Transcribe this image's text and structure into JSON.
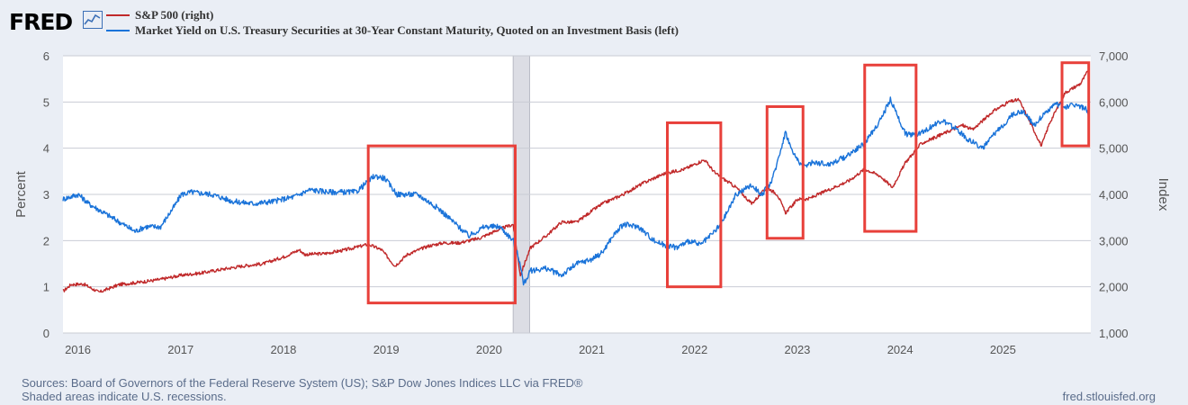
{
  "header": {
    "logo_text": "FRED",
    "logo_icon": "fred-chart-icon"
  },
  "legend": {
    "items": [
      {
        "label": "S&P 500 (right)",
        "color": "#c0292a"
      },
      {
        "label": "Market Yield on U.S. Treasury Securities at 30-Year Constant Maturity, Quoted on an Investment Basis (left)",
        "color": "#1a73d9"
      }
    ]
  },
  "footer": {
    "sources": "Sources: Board of Governors of the Federal Reserve System (US); S&P Dow Jones Indices LLC via FRED®",
    "note": "Shaded areas indicate U.S. recessions.",
    "site": "fred.stlouisfed.org"
  },
  "chart_data": {
    "type": "line",
    "title": "",
    "xlabel": "",
    "ylabel_left": "Percent",
    "ylabel_right": "Index",
    "x_range": [
      2015.75,
      2025.75
    ],
    "xticks": [
      2016,
      2017,
      2018,
      2019,
      2020,
      2021,
      2022,
      2023,
      2024,
      2025
    ],
    "xtick_labels": [
      "2016",
      "2017",
      "2018",
      "2019",
      "2020",
      "2021",
      "2022",
      "2023",
      "2024",
      "2025"
    ],
    "ylim_left": [
      0,
      6
    ],
    "yticks_left": [
      0,
      1,
      2,
      3,
      4,
      5,
      6
    ],
    "ytick_labels_left": [
      "0",
      "1",
      "2",
      "3",
      "4",
      "5",
      "6"
    ],
    "ylim_right": [
      1000,
      7000
    ],
    "yticks_right": [
      1000,
      2000,
      3000,
      4000,
      5000,
      6000,
      7000
    ],
    "ytick_labels_right": [
      "1,000",
      "2,000",
      "3,000",
      "4,000",
      "5,000",
      "6,000",
      "7,000"
    ],
    "grid": true,
    "recessions": [
      [
        2020.13,
        2020.29
      ]
    ],
    "highlight_boxes": [
      {
        "x0": 2018.72,
        "x1": 2020.15,
        "y0_left": 0.65,
        "y1_left": 4.05
      },
      {
        "x0": 2021.63,
        "x1": 2022.15,
        "y0_left": 1.0,
        "y1_left": 4.55
      },
      {
        "x0": 2022.6,
        "x1": 2022.95,
        "y0_left": 2.05,
        "y1_left": 4.9
      },
      {
        "x0": 2023.55,
        "x1": 2024.05,
        "y0_left": 2.2,
        "y1_left": 5.8
      },
      {
        "x0": 2025.47,
        "x1": 2025.73,
        "y0_left": 4.05,
        "y1_left": 5.85
      }
    ],
    "series": [
      {
        "name": "S&P 500 (right)",
        "axis": "right",
        "color": "#c0292a",
        "x": [
          2015.75,
          2015.83,
          2015.95,
          2016.1,
          2016.3,
          2016.5,
          2016.7,
          2016.9,
          2017.1,
          2017.3,
          2017.5,
          2017.7,
          2017.9,
          2018.05,
          2018.1,
          2018.3,
          2018.5,
          2018.72,
          2018.85,
          2018.98,
          2019.1,
          2019.3,
          2019.45,
          2019.6,
          2019.8,
          2020.0,
          2020.13,
          2020.2,
          2020.24,
          2020.3,
          2020.45,
          2020.6,
          2020.75,
          2020.9,
          2021.0,
          2021.2,
          2021.4,
          2021.6,
          2021.8,
          2021.99,
          2022.1,
          2022.3,
          2022.45,
          2022.6,
          2022.7,
          2022.78,
          2022.9,
          2023.0,
          2023.2,
          2023.4,
          2023.55,
          2023.7,
          2023.82,
          2023.95,
          2024.1,
          2024.3,
          2024.5,
          2024.6,
          2024.8,
          2024.95,
          2025.05,
          2025.15,
          2025.27,
          2025.35,
          2025.5,
          2025.65,
          2025.73
        ],
        "values": [
          1900,
          2050,
          2060,
          1880,
          2050,
          2100,
          2160,
          2250,
          2300,
          2380,
          2450,
          2500,
          2650,
          2800,
          2700,
          2720,
          2800,
          2920,
          2800,
          2450,
          2700,
          2880,
          2950,
          2950,
          3050,
          3250,
          3350,
          2250,
          2500,
          2850,
          3100,
          3400,
          3400,
          3650,
          3800,
          4000,
          4250,
          4450,
          4550,
          4750,
          4450,
          4150,
          3800,
          4150,
          4000,
          3600,
          3900,
          3900,
          4100,
          4300,
          4550,
          4400,
          4150,
          4700,
          5100,
          5300,
          5500,
          5400,
          5800,
          6000,
          6050,
          5600,
          5050,
          5550,
          6200,
          6400,
          6700
        ]
      },
      {
        "name": "Market Yield on U.S. Treasury Securities at 30-Year Constant Maturity, Quoted on an Investment Basis (left)",
        "axis": "left",
        "color": "#1a73d9",
        "x": [
          2015.75,
          2015.9,
          2016.0,
          2016.15,
          2016.3,
          2016.45,
          2016.55,
          2016.7,
          2016.85,
          2016.9,
          2017.0,
          2017.2,
          2017.4,
          2017.6,
          2017.8,
          2018.0,
          2018.15,
          2018.35,
          2018.6,
          2018.78,
          2018.88,
          2019.0,
          2019.2,
          2019.4,
          2019.55,
          2019.7,
          2019.85,
          2020.0,
          2020.13,
          2020.2,
          2020.23,
          2020.3,
          2020.45,
          2020.6,
          2020.75,
          2020.9,
          2021.0,
          2021.1,
          2021.2,
          2021.35,
          2021.5,
          2021.6,
          2021.72,
          2021.85,
          2021.95,
          2022.05,
          2022.15,
          2022.3,
          2022.45,
          2022.55,
          2022.65,
          2022.78,
          2022.85,
          2022.95,
          2023.05,
          2023.2,
          2023.35,
          2023.55,
          2023.7,
          2023.8,
          2023.95,
          2024.05,
          2024.15,
          2024.3,
          2024.45,
          2024.55,
          2024.7,
          2024.85,
          2025.0,
          2025.1,
          2025.2,
          2025.3,
          2025.4,
          2025.5,
          2025.6,
          2025.7,
          2025.73
        ],
        "values": [
          2.9,
          3.0,
          2.8,
          2.6,
          2.4,
          2.2,
          2.3,
          2.3,
          2.8,
          3.0,
          3.05,
          3.0,
          2.85,
          2.8,
          2.85,
          2.95,
          3.1,
          3.05,
          3.05,
          3.4,
          3.35,
          3.0,
          3.0,
          2.7,
          2.4,
          2.1,
          2.3,
          2.3,
          2.0,
          1.5,
          1.05,
          1.35,
          1.4,
          1.25,
          1.5,
          1.6,
          1.75,
          2.1,
          2.35,
          2.3,
          2.0,
          1.9,
          1.85,
          2.0,
          1.9,
          2.1,
          2.35,
          3.0,
          3.2,
          3.0,
          3.3,
          4.35,
          3.9,
          3.6,
          3.7,
          3.65,
          3.8,
          4.1,
          4.6,
          5.05,
          4.3,
          4.3,
          4.4,
          4.6,
          4.4,
          4.2,
          4.0,
          4.4,
          4.75,
          4.8,
          4.5,
          4.75,
          4.95,
          4.9,
          4.95,
          4.85,
          4.7
        ]
      }
    ]
  }
}
